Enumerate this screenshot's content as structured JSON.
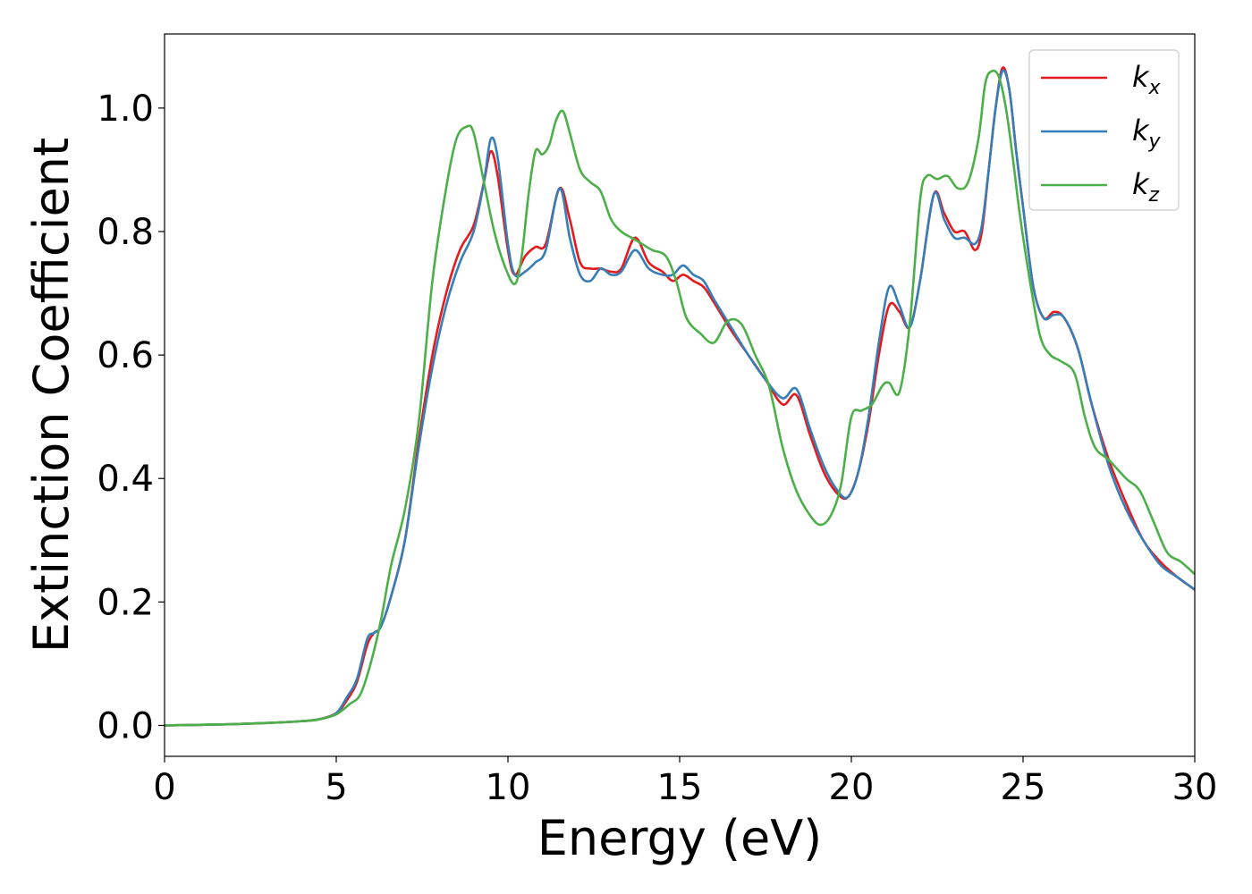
{
  "chart_data": {
    "type": "line",
    "title": "",
    "xlabel": "Energy (eV)",
    "ylabel": "Extinction Coefficient",
    "xlim": [
      0,
      30
    ],
    "ylim": [
      -0.05,
      1.12
    ],
    "xticks": [
      0,
      5,
      10,
      15,
      20,
      25,
      30
    ],
    "xtick_labels": [
      "0",
      "5",
      "10",
      "15",
      "20",
      "25",
      "30"
    ],
    "yticks": [
      0.0,
      0.2,
      0.4,
      0.6,
      0.8,
      1.0
    ],
    "ytick_labels": [
      "0.0",
      "0.2",
      "0.4",
      "0.6",
      "0.8",
      "1.0"
    ],
    "grid": false,
    "legend_position": "top-right",
    "series": [
      {
        "name": "k_x",
        "legend_base": "k",
        "legend_sub": "x",
        "color": "#e41a1c",
        "x": [
          0,
          1,
          2,
          3,
          4,
          4.5,
          5,
          5.3,
          5.6,
          5.9,
          6.1,
          6.3,
          6.6,
          7,
          7.4,
          7.8,
          8.2,
          8.6,
          9,
          9.3,
          9.5,
          9.7,
          10,
          10.2,
          10.5,
          10.8,
          11.1,
          11.5,
          11.8,
          12.1,
          12.4,
          12.7,
          13,
          13.3,
          13.7,
          14.1,
          14.5,
          14.8,
          15.1,
          15.4,
          15.7,
          16,
          16.5,
          17,
          17.5,
          18,
          18.4,
          18.8,
          19.2,
          19.6,
          19.9,
          20.2,
          20.5,
          20.8,
          21.1,
          21.4,
          21.7,
          22,
          22.4,
          22.7,
          23,
          23.3,
          23.6,
          23.8,
          24,
          24.2,
          24.4,
          24.6,
          24.8,
          25,
          25.3,
          25.6,
          25.9,
          26.2,
          26.6,
          27,
          27.5,
          28,
          28.5,
          29,
          29.5,
          30
        ],
        "y": [
          0.0,
          0.001,
          0.002,
          0.004,
          0.007,
          0.01,
          0.02,
          0.04,
          0.07,
          0.13,
          0.15,
          0.16,
          0.21,
          0.3,
          0.46,
          0.6,
          0.7,
          0.77,
          0.81,
          0.88,
          0.93,
          0.89,
          0.77,
          0.73,
          0.76,
          0.775,
          0.78,
          0.87,
          0.82,
          0.75,
          0.74,
          0.74,
          0.735,
          0.74,
          0.79,
          0.75,
          0.735,
          0.72,
          0.73,
          0.72,
          0.71,
          0.685,
          0.64,
          0.6,
          0.56,
          0.52,
          0.535,
          0.47,
          0.41,
          0.375,
          0.37,
          0.41,
          0.49,
          0.6,
          0.68,
          0.67,
          0.645,
          0.72,
          0.86,
          0.83,
          0.8,
          0.8,
          0.77,
          0.8,
          0.9,
          1.0,
          1.065,
          1.03,
          0.93,
          0.84,
          0.71,
          0.66,
          0.67,
          0.66,
          0.61,
          0.52,
          0.43,
          0.36,
          0.3,
          0.265,
          0.24,
          0.22
        ]
      },
      {
        "name": "k_y",
        "legend_base": "k",
        "legend_sub": "y",
        "color": "#377eb8",
        "x": [
          0,
          1,
          2,
          3,
          4,
          4.5,
          5,
          5.3,
          5.6,
          5.9,
          6.1,
          6.3,
          6.6,
          7,
          7.4,
          7.8,
          8.2,
          8.6,
          9,
          9.3,
          9.5,
          9.7,
          10,
          10.2,
          10.5,
          10.8,
          11.1,
          11.5,
          11.8,
          12.1,
          12.4,
          12.7,
          13,
          13.3,
          13.7,
          14.1,
          14.5,
          14.8,
          15.1,
          15.4,
          15.7,
          16,
          16.5,
          17,
          17.5,
          18,
          18.4,
          18.8,
          19.2,
          19.6,
          19.9,
          20.2,
          20.5,
          20.8,
          21.1,
          21.4,
          21.7,
          22,
          22.4,
          22.7,
          23,
          23.3,
          23.6,
          23.8,
          24,
          24.2,
          24.4,
          24.6,
          24.8,
          25,
          25.3,
          25.6,
          25.9,
          26.2,
          26.6,
          27,
          27.5,
          28,
          28.5,
          29,
          29.5,
          30
        ],
        "y": [
          0.0,
          0.001,
          0.002,
          0.004,
          0.007,
          0.01,
          0.02,
          0.045,
          0.075,
          0.14,
          0.15,
          0.16,
          0.21,
          0.3,
          0.45,
          0.58,
          0.68,
          0.75,
          0.8,
          0.88,
          0.95,
          0.92,
          0.78,
          0.73,
          0.735,
          0.75,
          0.77,
          0.87,
          0.79,
          0.73,
          0.72,
          0.74,
          0.73,
          0.735,
          0.77,
          0.74,
          0.73,
          0.73,
          0.745,
          0.73,
          0.72,
          0.69,
          0.645,
          0.6,
          0.56,
          0.53,
          0.545,
          0.48,
          0.42,
          0.38,
          0.37,
          0.41,
          0.5,
          0.62,
          0.71,
          0.68,
          0.645,
          0.72,
          0.86,
          0.82,
          0.79,
          0.79,
          0.78,
          0.81,
          0.9,
          1.0,
          1.06,
          1.03,
          0.93,
          0.84,
          0.71,
          0.66,
          0.665,
          0.66,
          0.61,
          0.52,
          0.42,
          0.35,
          0.3,
          0.26,
          0.24,
          0.22
        ]
      },
      {
        "name": "k_z",
        "legend_base": "k",
        "legend_sub": "z",
        "color": "#4daf4a",
        "x": [
          0,
          1,
          2,
          3,
          4,
          4.5,
          5,
          5.4,
          5.7,
          6,
          6.3,
          6.6,
          7,
          7.4,
          7.8,
          8.2,
          8.5,
          8.8,
          9,
          9.3,
          9.6,
          9.9,
          10.2,
          10.4,
          10.6,
          10.8,
          11,
          11.2,
          11.4,
          11.6,
          11.8,
          12.1,
          12.4,
          12.7,
          13,
          13.3,
          13.6,
          13.9,
          14.2,
          14.6,
          14.9,
          15.2,
          15.6,
          16,
          16.4,
          16.8,
          17.2,
          17.6,
          18,
          18.4,
          18.8,
          19.1,
          19.4,
          19.7,
          20,
          20.3,
          20.6,
          20.9,
          21.1,
          21.4,
          21.7,
          22,
          22.2,
          22.5,
          22.8,
          23.1,
          23.4,
          23.7,
          23.9,
          24.1,
          24.3,
          24.5,
          24.7,
          24.9,
          25.2,
          25.5,
          25.8,
          26.1,
          26.5,
          26.8,
          27.1,
          27.5,
          28,
          28.4,
          28.8,
          29.2,
          29.6,
          30
        ],
        "y": [
          0.0,
          0.001,
          0.002,
          0.004,
          0.007,
          0.01,
          0.018,
          0.035,
          0.05,
          0.1,
          0.17,
          0.26,
          0.35,
          0.49,
          0.72,
          0.87,
          0.95,
          0.97,
          0.96,
          0.88,
          0.8,
          0.745,
          0.715,
          0.76,
          0.86,
          0.93,
          0.925,
          0.94,
          0.98,
          0.995,
          0.96,
          0.9,
          0.88,
          0.865,
          0.82,
          0.8,
          0.79,
          0.78,
          0.77,
          0.76,
          0.72,
          0.66,
          0.635,
          0.62,
          0.655,
          0.65,
          0.6,
          0.55,
          0.45,
          0.38,
          0.34,
          0.325,
          0.34,
          0.39,
          0.5,
          0.51,
          0.52,
          0.55,
          0.555,
          0.54,
          0.65,
          0.85,
          0.89,
          0.885,
          0.89,
          0.87,
          0.88,
          0.95,
          1.04,
          1.06,
          1.05,
          1.0,
          0.92,
          0.83,
          0.72,
          0.63,
          0.6,
          0.59,
          0.57,
          0.5,
          0.45,
          0.43,
          0.4,
          0.38,
          0.33,
          0.28,
          0.265,
          0.245
        ]
      }
    ]
  }
}
